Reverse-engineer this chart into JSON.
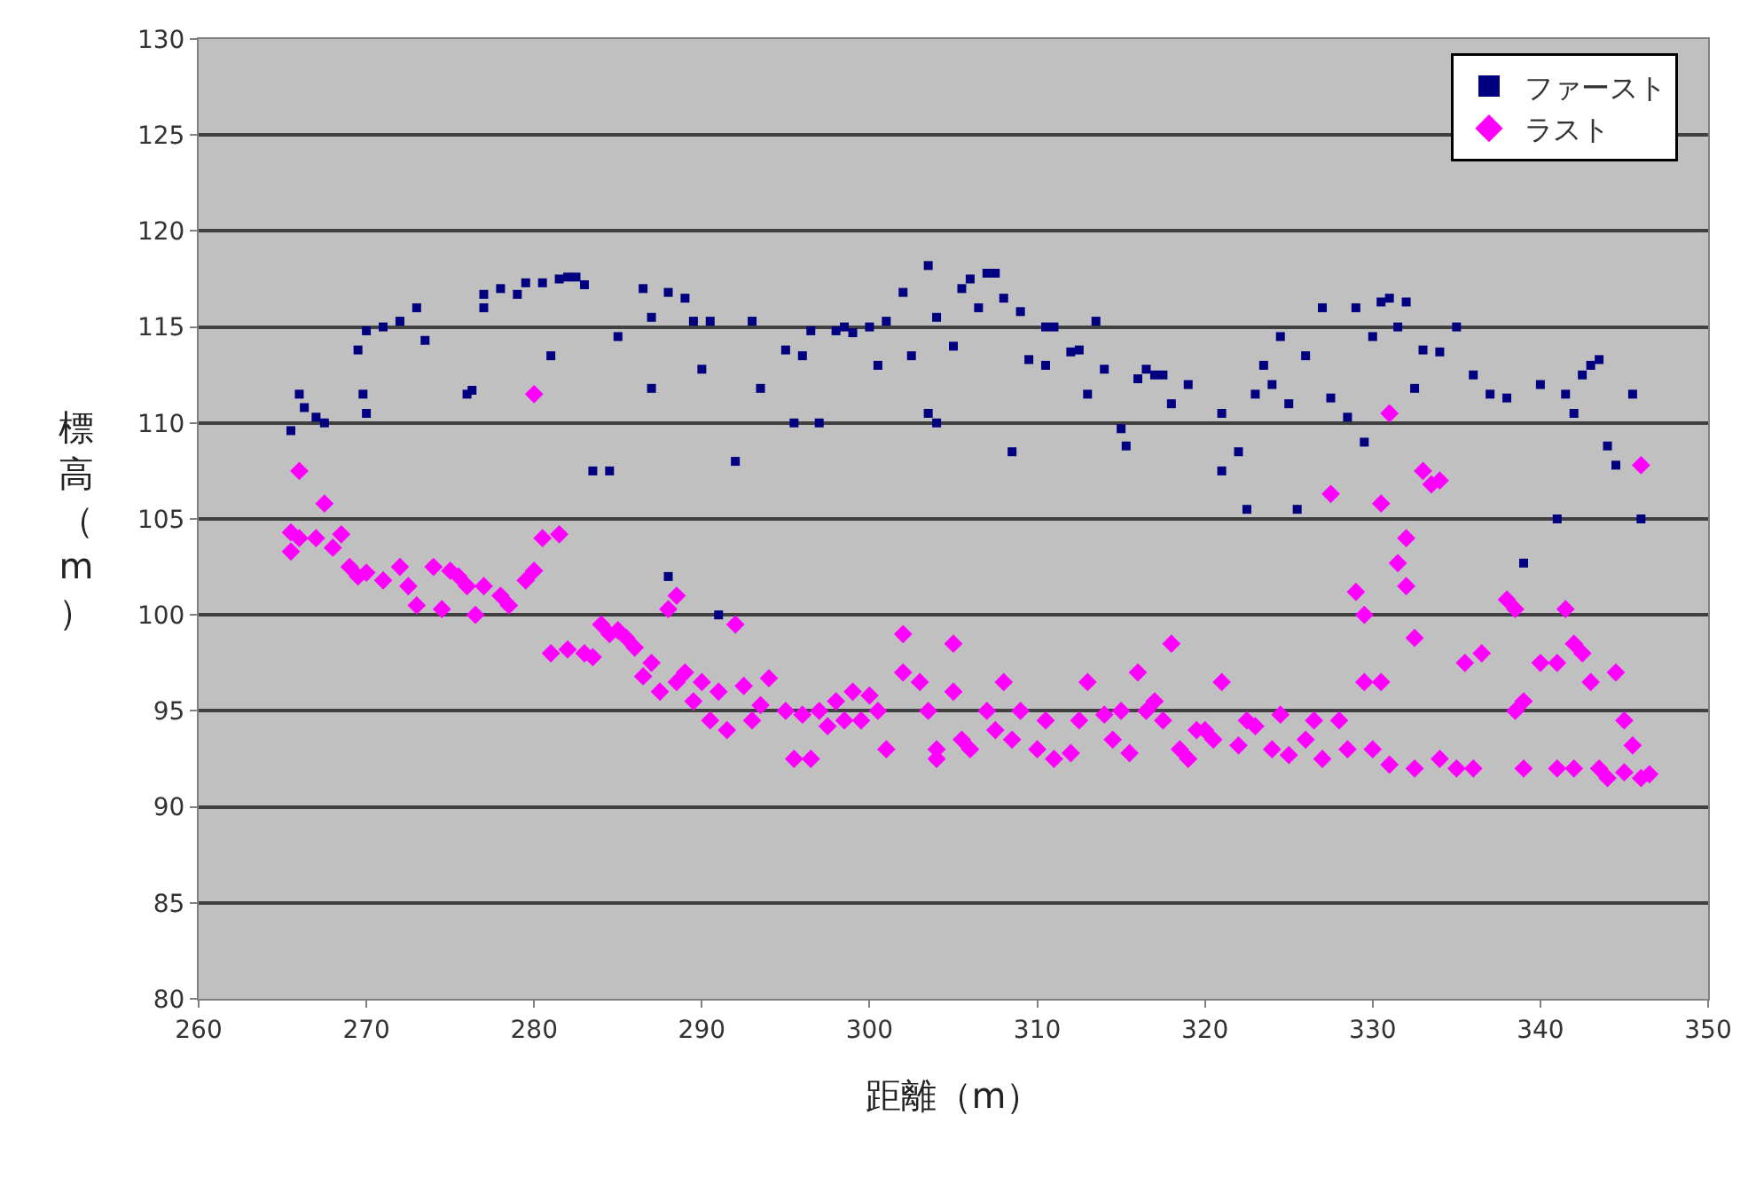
{
  "chart_data": {
    "type": "scatter",
    "xlabel": "距離（m）",
    "ylabel": "標高（m）",
    "xlim": [
      260,
      350
    ],
    "xticks": [
      260,
      270,
      280,
      290,
      300,
      310,
      320,
      330,
      340,
      350
    ],
    "ylim": [
      80,
      130
    ],
    "yticks": [
      80,
      85,
      90,
      95,
      100,
      105,
      110,
      115,
      120,
      125,
      130
    ],
    "grid": "y",
    "legend": "top right",
    "series": [
      {
        "name": "ファースト",
        "color": "#000080",
        "marker": "square",
        "x": [
          265.5,
          266,
          266.3,
          267,
          267.5,
          269.5,
          269.8,
          270,
          270,
          271,
          272,
          273,
          273.5,
          276,
          276.3,
          277,
          277,
          278,
          279,
          279.5,
          280.5,
          281,
          281.5,
          282,
          282.5,
          283,
          283.5,
          284.5,
          285,
          286.5,
          287,
          287,
          288,
          288,
          289,
          289.5,
          290,
          290.5,
          291,
          292,
          293,
          293.5,
          295,
          295.5,
          296,
          296.5,
          297,
          298,
          298.5,
          299,
          300,
          300.5,
          301,
          302,
          302.5,
          303.5,
          303.5,
          304,
          304,
          305,
          305.5,
          306,
          306.5,
          307,
          307.5,
          308,
          308.5,
          309,
          309.5,
          310.5,
          310.5,
          311,
          312,
          312.5,
          313,
          313.5,
          314,
          315,
          315.3,
          316,
          316.5,
          317,
          317.5,
          318,
          319,
          321,
          321,
          322,
          322.5,
          323,
          323.5,
          324,
          324.5,
          325,
          325.5,
          326,
          327,
          327.5,
          328.5,
          329,
          329.5,
          330,
          330.5,
          331,
          331.5,
          332,
          332.5,
          333,
          334,
          335,
          336,
          337,
          338,
          339,
          340,
          341,
          341.5,
          342,
          342.5,
          343,
          343.5,
          344,
          344.5,
          345.5,
          346
        ],
        "values": [
          109.6,
          111.5,
          110.8,
          110.3,
          110,
          113.8,
          111.5,
          110.5,
          114.8,
          115,
          115.3,
          116,
          114.3,
          111.5,
          111.7,
          116.7,
          116,
          117,
          116.7,
          117.3,
          117.3,
          113.5,
          117.5,
          117.6,
          117.6,
          117.2,
          107.5,
          107.5,
          114.5,
          117,
          115.5,
          111.8,
          116.8,
          102,
          116.5,
          115.3,
          112.8,
          115.3,
          100,
          108,
          115.3,
          111.8,
          113.8,
          110,
          113.5,
          114.8,
          110,
          114.8,
          115,
          114.7,
          115,
          113,
          115.3,
          116.8,
          113.5,
          118.2,
          110.5,
          110,
          115.5,
          114,
          117,
          117.5,
          116,
          117.8,
          117.8,
          116.5,
          108.5,
          115.8,
          113.3,
          113,
          115,
          115,
          113.7,
          113.8,
          111.5,
          115.3,
          112.8,
          109.7,
          108.8,
          112.3,
          112.8,
          112.5,
          112.5,
          111,
          112,
          110.5,
          107.5,
          108.5,
          105.5,
          111.5,
          113,
          112,
          114.5,
          111,
          105.5,
          113.5,
          116,
          111.3,
          110.3,
          116,
          109,
          114.5,
          116.3,
          116.5,
          115,
          116.3,
          111.8,
          113.8,
          113.7,
          115,
          112.5,
          111.5,
          111.3,
          102.7,
          112,
          105,
          111.5,
          110.5,
          112.5,
          113,
          113.3,
          108.8,
          107.8,
          111.5,
          105
        ]
      },
      {
        "name": "ラスト",
        "color": "#ff00ff",
        "marker": "diamond",
        "x": [
          265.5,
          265.5,
          266,
          266,
          267,
          267.5,
          268,
          268.5,
          269,
          269.5,
          270,
          271,
          272,
          272.5,
          273,
          274,
          274.5,
          275,
          275.5,
          276,
          276.5,
          277,
          278,
          278.5,
          279.5,
          280,
          280,
          280.5,
          281,
          281.5,
          282,
          283,
          283.5,
          284,
          284.5,
          285,
          285.5,
          286,
          286.5,
          287,
          287.5,
          288,
          288.5,
          288.5,
          289,
          289.5,
          290,
          290.5,
          291,
          291.5,
          292,
          292.5,
          293,
          293.5,
          294,
          295,
          295.5,
          296,
          296.5,
          297,
          297.5,
          298,
          298.5,
          299,
          299.5,
          300,
          300.5,
          301,
          302,
          302,
          303,
          303.5,
          304,
          304,
          305,
          305,
          305.5,
          306,
          307,
          307.5,
          308,
          308.5,
          309,
          310,
          310.5,
          311,
          312,
          312.5,
          313,
          314,
          314.5,
          315,
          315.5,
          316,
          316.5,
          317,
          317.5,
          318,
          318.5,
          319,
          319.5,
          320,
          320.5,
          321,
          322,
          322.5,
          323,
          324,
          324.5,
          325,
          326,
          326.5,
          327,
          327.5,
          328,
          328.5,
          329,
          329.5,
          329.5,
          330,
          330.5,
          330.5,
          331,
          331,
          331.5,
          332,
          332,
          332.5,
          332.5,
          333,
          333.5,
          334,
          334,
          335,
          335.5,
          336,
          336.5,
          338,
          338.5,
          338.5,
          339,
          339,
          340,
          341,
          341,
          341.5,
          342,
          342,
          342.5,
          343,
          343.5,
          344,
          344.5,
          345,
          345,
          345.5,
          346,
          346,
          346.5
        ],
        "values": [
          104.3,
          103.3,
          107.5,
          104,
          104,
          105.8,
          103.5,
          104.2,
          102.5,
          102,
          102.2,
          101.8,
          102.5,
          101.5,
          100.5,
          102.5,
          100.3,
          102.3,
          102,
          101.5,
          100,
          101.5,
          101,
          100.5,
          101.8,
          102.3,
          111.5,
          104,
          98,
          104.2,
          98.2,
          98,
          97.8,
          99.5,
          99,
          99.2,
          98.8,
          98.3,
          96.8,
          97.5,
          96,
          100.3,
          101,
          96.5,
          97,
          95.5,
          96.5,
          94.5,
          96,
          94,
          99.5,
          96.3,
          94.5,
          95.3,
          96.7,
          95,
          92.5,
          94.8,
          92.5,
          95,
          94.2,
          95.5,
          94.5,
          96,
          94.5,
          95.8,
          95,
          93,
          99,
          97,
          96.5,
          95,
          93,
          92.5,
          98.5,
          96,
          93.5,
          93,
          95,
          94,
          96.5,
          93.5,
          95,
          93,
          94.5,
          92.5,
          92.8,
          94.5,
          96.5,
          94.8,
          93.5,
          95,
          92.8,
          97,
          95,
          95.5,
          94.5,
          98.5,
          93,
          92.5,
          94,
          94,
          93.5,
          96.5,
          93.2,
          94.5,
          94.2,
          93,
          94.8,
          92.7,
          93.5,
          94.5,
          92.5,
          106.3,
          94.5,
          93,
          101.2,
          100,
          96.5,
          93,
          105.8,
          96.5,
          110.5,
          92.2,
          102.7,
          101.5,
          104,
          98.8,
          92,
          107.5,
          106.8,
          107,
          92.5,
          92,
          97.5,
          92,
          98,
          100.8,
          95,
          100.3,
          95.5,
          92,
          97.5,
          97.5,
          92,
          100.3,
          98.5,
          92,
          98,
          96.5,
          92,
          91.5,
          97,
          94.5,
          91.8,
          93.2,
          107.8,
          91.5,
          91.7
        ]
      }
    ]
  }
}
